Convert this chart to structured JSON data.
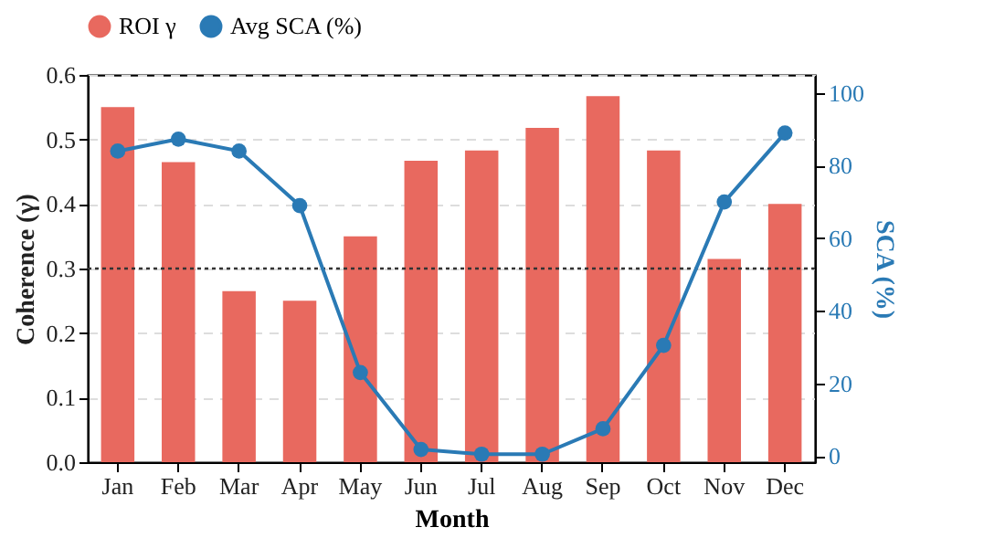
{
  "chart_data": {
    "type": "bar",
    "categories": [
      "Jan",
      "Feb",
      "Mar",
      "Apr",
      "May",
      "Jun",
      "Jul",
      "Aug",
      "Sep",
      "Oct",
      "Nov",
      "Dec"
    ],
    "series": [
      {
        "name": "ROI γ",
        "color": "#e8695f",
        "values": [
          0.55,
          0.465,
          0.265,
          0.25,
          0.35,
          0.467,
          0.483,
          0.518,
          0.567,
          0.483,
          0.315,
          0.4
        ]
      },
      {
        "name": "Avg SCA (%)",
        "type": "line",
        "axis": "y2",
        "color": "#2a7ab5",
        "values": [
          84,
          87.3,
          84,
          69,
          23,
          1.8,
          0.5,
          0.5,
          7.5,
          30.5,
          70,
          89
        ]
      }
    ],
    "xlabel": "Month",
    "ylabel": "Coherence (γ)",
    "y2label": "SCA (%)",
    "ylim": [
      0,
      0.6
    ],
    "yticks": [
      {
        "value": 0,
        "label": "0.0"
      },
      0.1,
      0.2,
      0.3,
      0.4,
      0.5,
      0.6
    ],
    "y2lim": [
      -1.7,
      105
    ],
    "y2ticks": [
      0,
      20,
      40,
      60,
      80,
      100
    ],
    "ref_lines": [
      {
        "axis": "y",
        "value": 0.3,
        "color": "#333333",
        "line_style": "dotted"
      }
    ],
    "grid": "y",
    "legend": "top",
    "marker": "circle",
    "line_style": "solid"
  }
}
